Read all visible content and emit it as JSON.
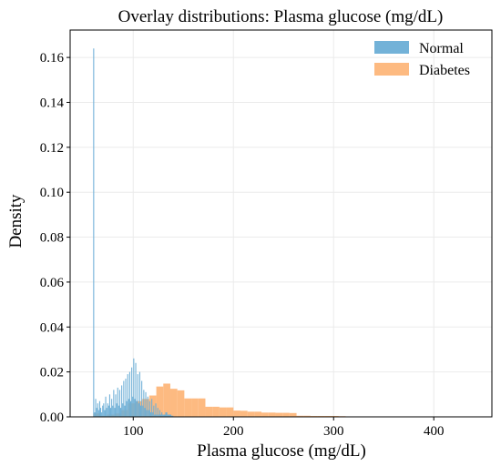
{
  "chart_data": {
    "type": "histogram",
    "title": "Overlay distributions: Plasma glucose (mg/dL)",
    "xlabel": "Plasma glucose (mg/dL)",
    "ylabel": "Density",
    "xlim": [
      37,
      458
    ],
    "ylim": [
      0,
      0.1722
    ],
    "x_ticks": [
      100,
      200,
      300,
      400
    ],
    "x_tick_labels": [
      "100",
      "200",
      "300",
      "400"
    ],
    "y_ticks": [
      0.0,
      0.02,
      0.04,
      0.06,
      0.08,
      0.1,
      0.12,
      0.14,
      0.16
    ],
    "y_tick_labels": [
      "0.00",
      "0.02",
      "0.04",
      "0.06",
      "0.08",
      "0.10",
      "0.12",
      "0.14",
      "0.16"
    ],
    "grid": true,
    "legend_position": "top-right",
    "series": [
      {
        "name": "Normal",
        "color": "#6baed6",
        "opacity": 0.95,
        "bins": [
          [
            60,
            61,
            0.164
          ],
          [
            61,
            62,
            0.002
          ],
          [
            62,
            63,
            0.008
          ],
          [
            63,
            64,
            0.004
          ],
          [
            64,
            65,
            0.006
          ],
          [
            65,
            66,
            0.003
          ],
          [
            66,
            67,
            0.007
          ],
          [
            67,
            68,
            0.004
          ],
          [
            68,
            69,
            0.002
          ],
          [
            69,
            70,
            0.005
          ],
          [
            70,
            71,
            0.006
          ],
          [
            71,
            72,
            0.003
          ],
          [
            72,
            73,
            0.009
          ],
          [
            73,
            74,
            0.004
          ],
          [
            74,
            75,
            0.006
          ],
          [
            75,
            76,
            0.005
          ],
          [
            76,
            77,
            0.01
          ],
          [
            77,
            78,
            0.004
          ],
          [
            78,
            79,
            0.008
          ],
          [
            79,
            80,
            0.005
          ],
          [
            80,
            81,
            0.012
          ],
          [
            81,
            82,
            0.004
          ],
          [
            82,
            83,
            0.01
          ],
          [
            83,
            84,
            0.006
          ],
          [
            84,
            85,
            0.013
          ],
          [
            85,
            86,
            0.005
          ],
          [
            86,
            87,
            0.012
          ],
          [
            87,
            88,
            0.004
          ],
          [
            88,
            89,
            0.014
          ],
          [
            89,
            90,
            0.006
          ],
          [
            90,
            91,
            0.016
          ],
          [
            91,
            92,
            0.005
          ],
          [
            92,
            93,
            0.017
          ],
          [
            93,
            94,
            0.007
          ],
          [
            94,
            95,
            0.019
          ],
          [
            95,
            96,
            0.008
          ],
          [
            96,
            97,
            0.02
          ],
          [
            97,
            98,
            0.007
          ],
          [
            98,
            99,
            0.022
          ],
          [
            99,
            100,
            0.009
          ],
          [
            100,
            101,
            0.026
          ],
          [
            101,
            102,
            0.008
          ],
          [
            102,
            103,
            0.024
          ],
          [
            103,
            104,
            0.007
          ],
          [
            104,
            105,
            0.019
          ],
          [
            105,
            106,
            0.006
          ],
          [
            106,
            107,
            0.02
          ],
          [
            107,
            108,
            0.005
          ],
          [
            108,
            109,
            0.016
          ],
          [
            109,
            110,
            0.005
          ],
          [
            110,
            111,
            0.012
          ],
          [
            111,
            112,
            0.004
          ],
          [
            112,
            113,
            0.011
          ],
          [
            113,
            114,
            0.003
          ],
          [
            114,
            115,
            0.009
          ],
          [
            115,
            116,
            0.003
          ],
          [
            116,
            117,
            0.007
          ],
          [
            117,
            118,
            0.002
          ],
          [
            118,
            119,
            0.008
          ],
          [
            119,
            120,
            0.002
          ],
          [
            120,
            121,
            0.005
          ],
          [
            121,
            122,
            0.001
          ],
          [
            122,
            123,
            0.006
          ],
          [
            123,
            124,
            0.001
          ],
          [
            124,
            125,
            0.004
          ],
          [
            125,
            126,
            0.001
          ],
          [
            126,
            127,
            0.003
          ],
          [
            127,
            128,
            0.001
          ],
          [
            128,
            129,
            0.002
          ],
          [
            129,
            130,
            0.001
          ],
          [
            130,
            132,
            0.001
          ],
          [
            132,
            134,
            0.002
          ],
          [
            134,
            136,
            0.001
          ],
          [
            136,
            138,
            0.001
          ],
          [
            138,
            140,
            0.0005
          ]
        ]
      },
      {
        "name": "Diabetes",
        "color": "#fdae6b",
        "opacity": 0.85,
        "bins": [
          [
            60,
            67,
            0.0015
          ],
          [
            67,
            74,
            0.0005
          ],
          [
            74,
            81,
            0.001
          ],
          [
            81,
            88,
            0.0015
          ],
          [
            88,
            95,
            0.003
          ],
          [
            95,
            102,
            0.006
          ],
          [
            102,
            109,
            0.007
          ],
          [
            109,
            116,
            0.008
          ],
          [
            116,
            123,
            0.0095
          ],
          [
            123,
            130,
            0.0135
          ],
          [
            130,
            137,
            0.0148
          ],
          [
            137,
            144,
            0.0125
          ],
          [
            144,
            151,
            0.0118
          ],
          [
            151,
            158,
            0.0082
          ],
          [
            158,
            165,
            0.0082
          ],
          [
            165,
            172,
            0.0082
          ],
          [
            172,
            179,
            0.0045
          ],
          [
            179,
            186,
            0.0045
          ],
          [
            186,
            193,
            0.0042
          ],
          [
            193,
            200,
            0.0042
          ],
          [
            200,
            207,
            0.0028
          ],
          [
            207,
            214,
            0.0027
          ],
          [
            214,
            221,
            0.0023
          ],
          [
            221,
            228,
            0.0023
          ],
          [
            228,
            235,
            0.0019
          ],
          [
            235,
            242,
            0.0019
          ],
          [
            242,
            249,
            0.0018
          ],
          [
            249,
            256,
            0.0018
          ],
          [
            256,
            263,
            0.0017
          ],
          [
            263,
            270,
            0.0005
          ],
          [
            270,
            277,
            0.0005
          ],
          [
            277,
            284,
            0.0004
          ],
          [
            284,
            291,
            0.0004
          ],
          [
            291,
            298,
            0.0004
          ],
          [
            298,
            305,
            0.0004
          ],
          [
            305,
            312,
            0.0003
          ],
          [
            312,
            319,
            0.0002
          ],
          [
            319,
            326,
            0.0002
          ],
          [
            326,
            333,
            0.0001
          ],
          [
            333,
            340,
            0.0001
          ],
          [
            340,
            350,
            0.0001
          ],
          [
            350,
            360,
            0.0001
          ],
          [
            360,
            370,
            0.0001
          ],
          [
            370,
            380,
            0.0001
          ],
          [
            380,
            390,
            0.0001
          ],
          [
            390,
            400,
            0.0001
          ],
          [
            400,
            410,
            0.0001
          ],
          [
            410,
            420,
            0.0001
          ],
          [
            420,
            430,
            0.0001
          ],
          [
            430,
            440,
            0.0001
          ],
          [
            440,
            450,
            0.0001
          ]
        ]
      }
    ]
  }
}
